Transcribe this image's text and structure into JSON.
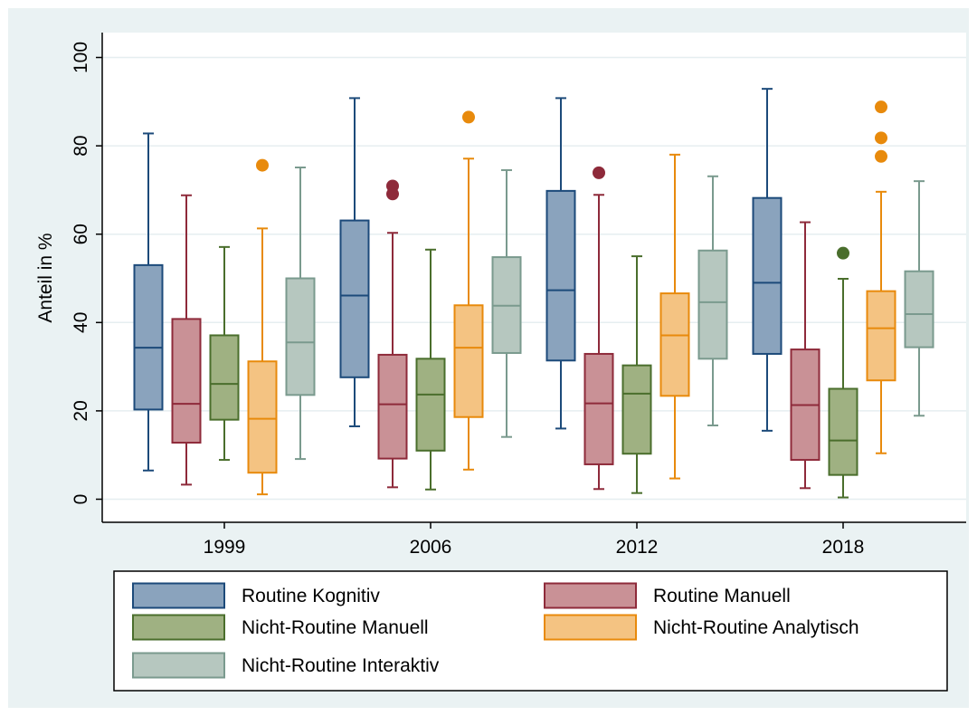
{
  "chart_data": {
    "type": "box",
    "title": "",
    "xlabel": "",
    "ylabel": "Anteil in %",
    "ylim": [
      -5,
      105
    ],
    "yticks": [
      0,
      20,
      40,
      60,
      80,
      100
    ],
    "grid": true,
    "legend_position": "bottom",
    "categories": [
      "1999",
      "2006",
      "2012",
      "2018"
    ],
    "series": [
      {
        "name": "Routine Kognitiv",
        "fill": "#8aa3bd",
        "stroke": "#1c4a7a",
        "boxes": [
          {
            "whisker_low": 6.5,
            "q1": 20.3,
            "median": 34.3,
            "q3": 53.0,
            "whisker_high": 82.8,
            "outliers": []
          },
          {
            "whisker_low": 16.5,
            "q1": 27.6,
            "median": 46.1,
            "q3": 63.1,
            "whisker_high": 90.8,
            "outliers": []
          },
          {
            "whisker_low": 16.0,
            "q1": 31.4,
            "median": 47.3,
            "q3": 69.8,
            "whisker_high": 90.8,
            "outliers": []
          },
          {
            "whisker_low": 15.5,
            "q1": 32.9,
            "median": 49.0,
            "q3": 68.2,
            "whisker_high": 92.9,
            "outliers": []
          }
        ]
      },
      {
        "name": "Routine Manuell",
        "fill": "#c99196",
        "stroke": "#8e2a3a",
        "boxes": [
          {
            "whisker_low": 3.3,
            "q1": 12.8,
            "median": 21.6,
            "q3": 40.8,
            "whisker_high": 68.8,
            "outliers": []
          },
          {
            "whisker_low": 2.7,
            "q1": 9.2,
            "median": 21.5,
            "q3": 32.7,
            "whisker_high": 60.3,
            "outliers": [
              69.1,
              70.9
            ]
          },
          {
            "whisker_low": 2.3,
            "q1": 7.9,
            "median": 21.7,
            "q3": 32.9,
            "whisker_high": 68.9,
            "outliers": [
              73.9
            ]
          },
          {
            "whisker_low": 2.5,
            "q1": 8.9,
            "median": 21.3,
            "q3": 33.9,
            "whisker_high": 62.7,
            "outliers": []
          }
        ]
      },
      {
        "name": "Nicht-Routine Manuell",
        "fill": "#9fb182",
        "stroke": "#4a6e2c",
        "boxes": [
          {
            "whisker_low": 8.9,
            "q1": 18.0,
            "median": 26.1,
            "q3": 37.1,
            "whisker_high": 57.1,
            "outliers": []
          },
          {
            "whisker_low": 2.2,
            "q1": 11.0,
            "median": 23.7,
            "q3": 31.8,
            "whisker_high": 56.5,
            "outliers": []
          },
          {
            "whisker_low": 1.4,
            "q1": 10.3,
            "median": 23.9,
            "q3": 30.3,
            "whisker_high": 55.0,
            "outliers": []
          },
          {
            "whisker_low": 0.4,
            "q1": 5.5,
            "median": 13.3,
            "q3": 25.0,
            "whisker_high": 49.9,
            "outliers": [
              55.7
            ]
          }
        ]
      },
      {
        "name": "Nicht-Routine Analytisch",
        "fill": "#f4c382",
        "stroke": "#e88a0c",
        "boxes": [
          {
            "whisker_low": 1.1,
            "q1": 6.0,
            "median": 18.2,
            "q3": 31.2,
            "whisker_high": 61.3,
            "outliers": [
              75.6
            ]
          },
          {
            "whisker_low": 6.7,
            "q1": 18.6,
            "median": 34.3,
            "q3": 43.9,
            "whisker_high": 77.1,
            "outliers": [
              86.5
            ]
          },
          {
            "whisker_low": 4.7,
            "q1": 23.4,
            "median": 37.1,
            "q3": 46.6,
            "whisker_high": 78.0,
            "outliers": []
          },
          {
            "whisker_low": 10.4,
            "q1": 26.9,
            "median": 38.7,
            "q3": 47.1,
            "whisker_high": 69.6,
            "outliers": [
              77.6,
              81.8,
              88.8
            ]
          }
        ]
      },
      {
        "name": "Nicht-Routine Interaktiv",
        "fill": "#b6c7bf",
        "stroke": "#7a9a8e",
        "boxes": [
          {
            "whisker_low": 9.1,
            "q1": 23.6,
            "median": 35.5,
            "q3": 50.0,
            "whisker_high": 75.1,
            "outliers": []
          },
          {
            "whisker_low": 14.1,
            "q1": 33.1,
            "median": 43.8,
            "q3": 54.8,
            "whisker_high": 74.5,
            "outliers": []
          },
          {
            "whisker_low": 16.7,
            "q1": 31.8,
            "median": 44.6,
            "q3": 56.3,
            "whisker_high": 73.1,
            "outliers": []
          },
          {
            "whisker_low": 18.9,
            "q1": 34.4,
            "median": 41.9,
            "q3": 51.6,
            "whisker_high": 72.0,
            "outliers": []
          }
        ]
      }
    ]
  }
}
